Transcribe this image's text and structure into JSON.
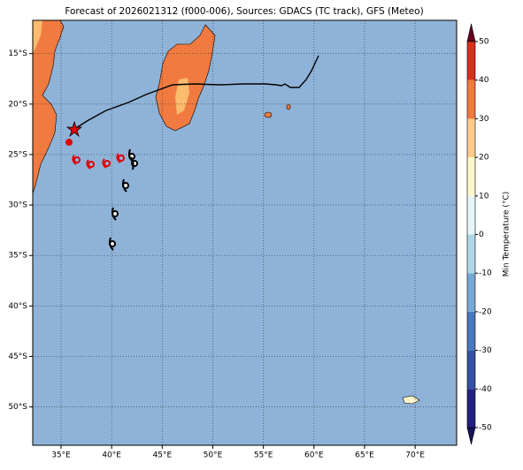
{
  "title": "Forecast of 2026021312 (f000-006), Sources: GDACS (TC track), GFS (Meteo)",
  "map": {
    "lonlim": [
      32.2,
      74.1
    ],
    "latlim": [
      -53.8,
      -11.7
    ],
    "lon_ticks": [
      {
        "value": 35,
        "label": "35°E"
      },
      {
        "value": 40,
        "label": "40°E"
      },
      {
        "value": 45,
        "label": "45°E"
      },
      {
        "value": 50,
        "label": "50°E"
      },
      {
        "value": 55,
        "label": "55°E"
      },
      {
        "value": 60,
        "label": "60°E"
      },
      {
        "value": 65,
        "label": "65°E"
      },
      {
        "value": 70,
        "label": "70°E"
      }
    ],
    "lat_ticks": [
      {
        "value": -15,
        "label": "15°S"
      },
      {
        "value": -20,
        "label": "20°S"
      },
      {
        "value": -25,
        "label": "25°S"
      },
      {
        "value": -30,
        "label": "30°S"
      },
      {
        "value": -35,
        "label": "35°S"
      },
      {
        "value": -40,
        "label": "40°S"
      },
      {
        "value": -45,
        "label": "45°S"
      },
      {
        "value": -50,
        "label": "50°S"
      }
    ]
  },
  "colorbar": {
    "label": "Min Temperature (°C)",
    "lim": [
      -50,
      50
    ],
    "ticks": [
      -50,
      -40,
      -30,
      -20,
      -10,
      0,
      10,
      20,
      30,
      40,
      50
    ],
    "colors": [
      "#222280",
      "#3550a0",
      "#4a78b8",
      "#78a8d2",
      "#b0d6e8",
      "#e6f5f8",
      "#fff6cc",
      "#fdcc8a",
      "#f07a40",
      "#d7301f",
      "#8b0023"
    ]
  }
}
